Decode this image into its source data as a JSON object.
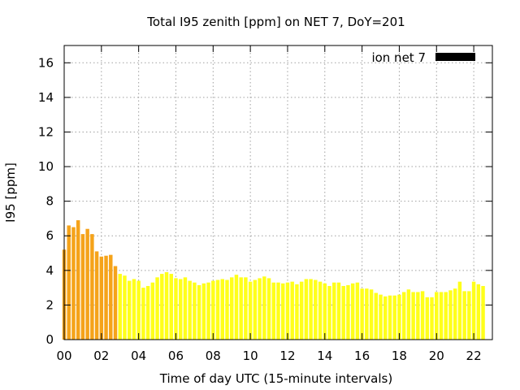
{
  "chart_data": {
    "type": "bar",
    "title": "Total I95 zenith [ppm] on NET 7, DoY=201",
    "xlabel": "Time of day UTC (15-minute intervals)",
    "ylabel": "I95 [ppm]",
    "xlim": [
      0,
      23
    ],
    "ylim": [
      0,
      17
    ],
    "x_ticks": [
      "00",
      "02",
      "04",
      "06",
      "08",
      "10",
      "12",
      "14",
      "16",
      "18",
      "20",
      "22"
    ],
    "y_ticks": [
      "0",
      "2",
      "4",
      "6",
      "8",
      "10",
      "12",
      "14",
      "16"
    ],
    "grid": true,
    "legend": {
      "position": "top-right",
      "entries": [
        {
          "label": "ion net 7",
          "color": "#000000"
        }
      ]
    },
    "series": [
      {
        "name": "ion net 7",
        "interval_hours": 0.25,
        "colors": {
          "early": "#f5a31a",
          "late": "#ffff1a"
        },
        "early_count": 12,
        "values": [
          5.2,
          6.6,
          6.5,
          6.9,
          6.1,
          6.4,
          6.1,
          5.1,
          4.8,
          4.85,
          4.9,
          4.25,
          3.8,
          3.7,
          3.4,
          3.5,
          3.4,
          3.0,
          3.1,
          3.3,
          3.6,
          3.8,
          3.9,
          3.8,
          3.55,
          3.5,
          3.6,
          3.4,
          3.3,
          3.15,
          3.25,
          3.3,
          3.4,
          3.45,
          3.5,
          3.45,
          3.6,
          3.75,
          3.6,
          3.6,
          3.35,
          3.45,
          3.55,
          3.65,
          3.55,
          3.3,
          3.3,
          3.25,
          3.3,
          3.35,
          3.2,
          3.35,
          3.5,
          3.5,
          3.45,
          3.35,
          3.25,
          3.1,
          3.3,
          3.3,
          3.1,
          3.15,
          3.25,
          3.3,
          2.95,
          2.95,
          2.9,
          2.7,
          2.6,
          2.5,
          2.55,
          2.55,
          2.6,
          2.75,
          2.9,
          2.75,
          2.75,
          2.8,
          2.45,
          2.45,
          2.75,
          2.75,
          2.75,
          2.85,
          2.95,
          3.35,
          2.8,
          2.8,
          3.35,
          3.2,
          3.1
        ]
      }
    ]
  }
}
